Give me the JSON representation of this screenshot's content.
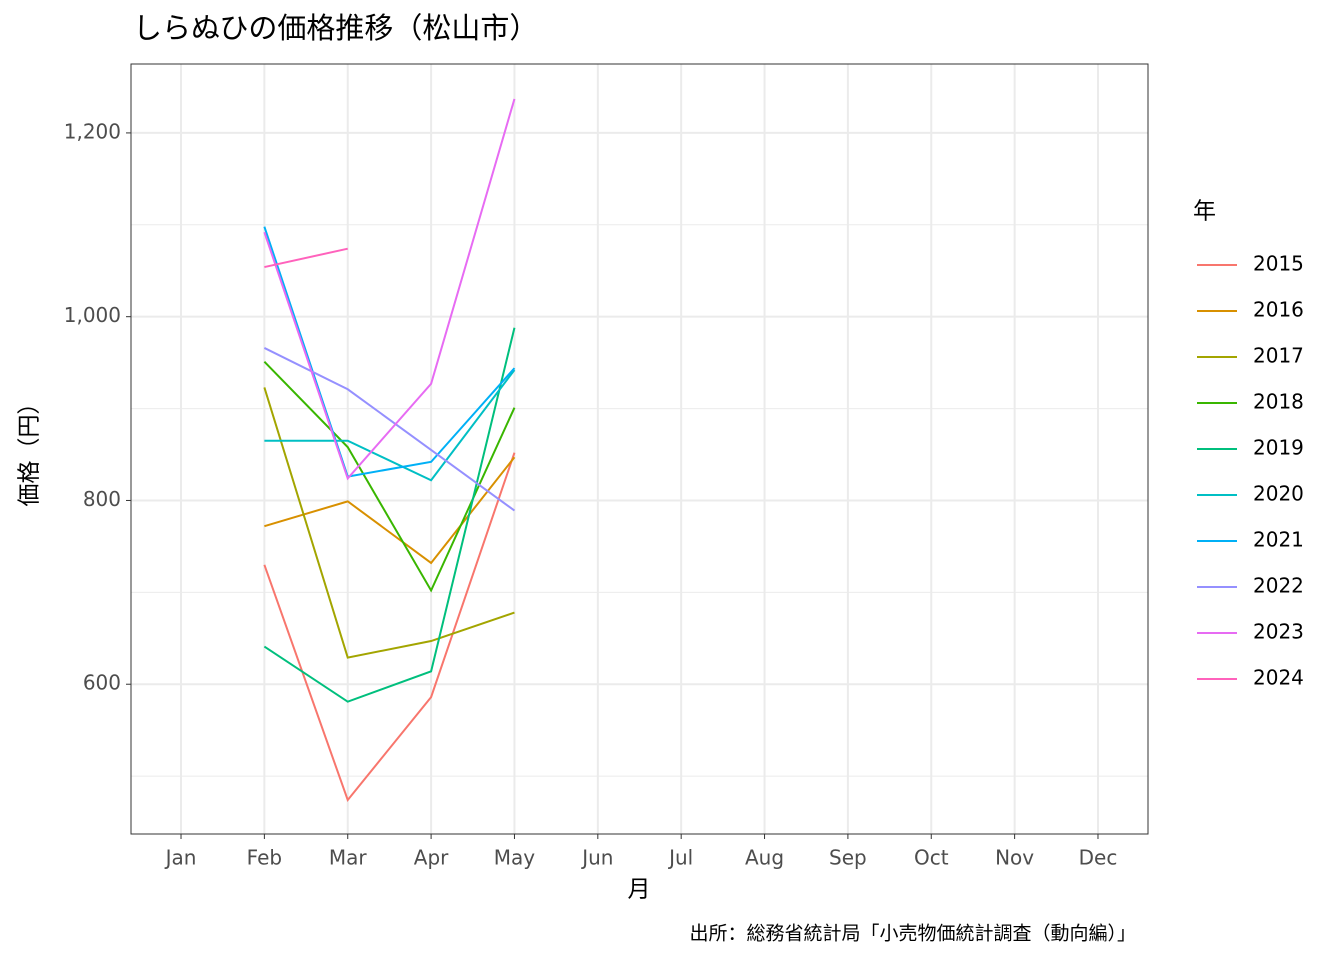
{
  "chart_data": {
    "type": "line",
    "title": "しらぬひの価格推移（松山市）",
    "x_label": "月",
    "y_label": "価格（円）",
    "legend_title": "年",
    "caption": "出所：総務省統計局「小売物価統計調査（動向編）」",
    "categories": [
      "Jan",
      "Feb",
      "Mar",
      "Apr",
      "May",
      "Jun",
      "Jul",
      "Aug",
      "Sep",
      "Oct",
      "Nov",
      "Dec"
    ],
    "ylim": [
      437,
      1275
    ],
    "yticks": [
      600,
      800,
      {
        "value": 1000,
        "label": "1,000"
      },
      {
        "value": 1200,
        "label": "1,200"
      }
    ],
    "minor_yticks": [
      500,
      700,
      900,
      1100
    ],
    "grid": true,
    "legend": "right",
    "series": [
      {
        "name": "2015",
        "color": "#F8766D",
        "values": [
          null,
          730,
          474,
          586,
          852,
          null,
          null,
          null,
          null,
          null,
          null,
          null
        ]
      },
      {
        "name": "2016",
        "color": "#D89000",
        "values": [
          null,
          772,
          799,
          732,
          847,
          null,
          null,
          null,
          null,
          null,
          null,
          null
        ]
      },
      {
        "name": "2017",
        "color": "#A3A500",
        "values": [
          null,
          923,
          629,
          647,
          678,
          null,
          null,
          null,
          null,
          null,
          null,
          null
        ]
      },
      {
        "name": "2018",
        "color": "#39B600",
        "values": [
          null,
          951,
          858,
          702,
          901,
          null,
          null,
          null,
          null,
          null,
          null,
          null
        ]
      },
      {
        "name": "2019",
        "color": "#00BF7D",
        "values": [
          null,
          641,
          581,
          614,
          988,
          null,
          null,
          null,
          null,
          null,
          null,
          null
        ]
      },
      {
        "name": "2020",
        "color": "#00BFC4",
        "values": [
          null,
          865,
          865,
          822,
          942,
          null,
          null,
          null,
          null,
          null,
          null,
          null
        ]
      },
      {
        "name": "2021",
        "color": "#00B0F6",
        "values": [
          null,
          1098,
          826,
          842,
          944,
          null,
          null,
          null,
          null,
          null,
          null,
          null
        ]
      },
      {
        "name": "2022",
        "color": "#9590FF",
        "values": [
          null,
          966,
          921,
          855,
          789,
          null,
          null,
          null,
          null,
          null,
          null,
          null
        ]
      },
      {
        "name": "2023",
        "color": "#E76BF3",
        "values": [
          null,
          1092,
          824,
          927,
          1237,
          null,
          null,
          null,
          null,
          null,
          null,
          null
        ]
      },
      {
        "name": "2024",
        "color": "#FF62BC",
        "values": [
          null,
          1054,
          1074,
          null,
          null,
          null,
          null,
          null,
          null,
          null,
          null,
          null
        ]
      }
    ]
  }
}
